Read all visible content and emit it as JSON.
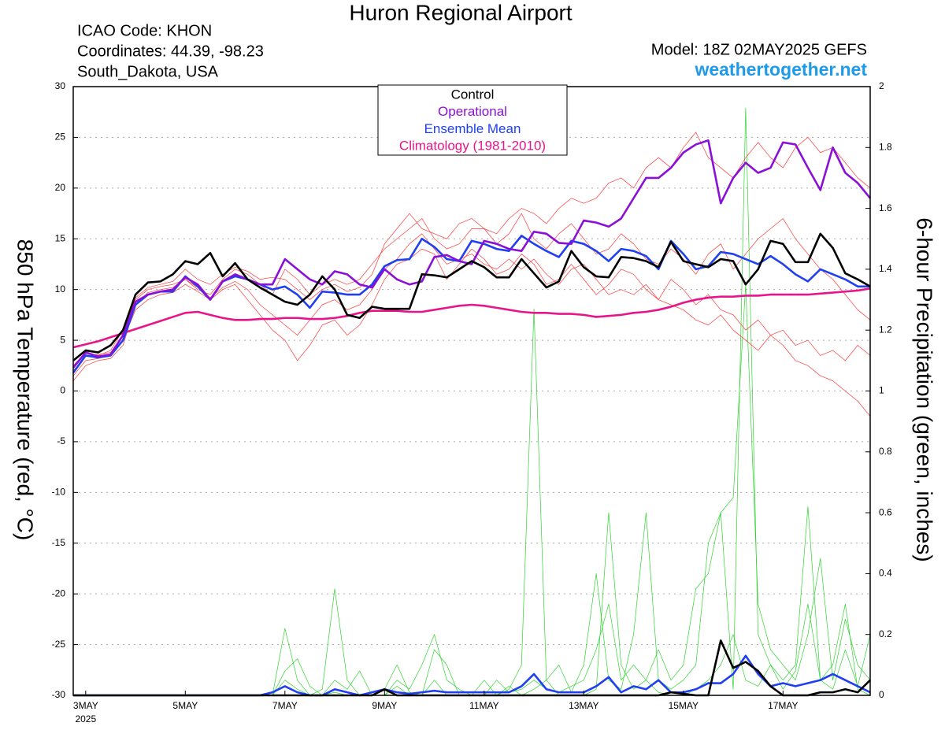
{
  "chart_data": {
    "type": "line",
    "title": "Huron Regional Airport",
    "header_lines": [
      "ICAO Code: KHON",
      "Coordinates: 44.39, -98.23",
      "South_Dakota, USA"
    ],
    "model": "Model: 18Z 02MAY2025 GEFS",
    "source": "weathertogether.net",
    "source_color": "#1e9be8",
    "y_label": "850 hPa Temperature (red, °C)",
    "y2_label": "6-hour Precipitation (green, inches)",
    "x_year_label": "2025",
    "grid": true,
    "x": [
      2.75,
      3,
      3.25,
      3.5,
      3.75,
      4,
      4.25,
      4.5,
      4.75,
      5,
      5.25,
      5.5,
      5.75,
      6,
      6.25,
      6.5,
      6.75,
      7,
      7.25,
      7.5,
      7.75,
      8,
      8.25,
      8.5,
      8.75,
      9,
      9.25,
      9.5,
      9.75,
      10,
      10.25,
      10.5,
      10.75,
      11,
      11.25,
      11.5,
      11.75,
      12,
      12.25,
      12.5,
      12.75,
      13,
      13.25,
      13.5,
      13.75,
      14,
      14.25,
      14.5,
      14.75,
      15,
      15.25,
      15.5,
      15.75,
      16,
      16.25,
      16.5,
      16.75,
      17,
      17.25,
      17.5,
      17.75,
      18,
      18.25,
      18.5,
      18.75
    ],
    "xlim": [
      2.75,
      18.75
    ],
    "xticks": [
      {
        "value": 3,
        "label": "3MAY"
      },
      {
        "value": 5,
        "label": "5MAY"
      },
      {
        "value": 7,
        "label": "7MAY"
      },
      {
        "value": 9,
        "label": "9MAY"
      },
      {
        "value": 11,
        "label": "11MAY"
      },
      {
        "value": 13,
        "label": "13MAY"
      },
      {
        "value": 15,
        "label": "15MAY"
      },
      {
        "value": 17,
        "label": "17MAY"
      }
    ],
    "ylim": [
      -30,
      30
    ],
    "yticks": [
      -30,
      -25,
      -20,
      -15,
      -10,
      -5,
      0,
      5,
      10,
      15,
      20,
      25,
      30
    ],
    "y2lim": [
      0,
      2
    ],
    "y2ticks": [
      0,
      0.2,
      0.4,
      0.6,
      0.8,
      1,
      1.2,
      1.4,
      1.6,
      1.8,
      2
    ],
    "series": [
      {
        "name": "Control",
        "color": "#000000",
        "line_width": 2.6,
        "values": [
          3,
          4,
          3.8,
          4.5,
          6,
          9.5,
          10.7,
          10.8,
          11.5,
          12.8,
          12.5,
          13.6,
          11.3,
          12.6,
          11,
          10.2,
          9.5,
          8.8,
          8.5,
          9.5,
          11.3,
          10,
          7.5,
          7.2,
          8.3,
          8.1,
          8.1,
          8.1,
          11.5,
          11.4,
          11.2,
          12,
          12.8,
          12.2,
          11.2,
          11.2,
          13,
          11.6,
          10.2,
          10.8,
          13.8,
          12.2,
          11.3,
          11.2,
          13.2,
          13.1,
          12.8,
          12.2,
          14.7,
          12.8,
          12.5,
          12.2,
          13,
          12.8,
          10.5,
          12,
          14.8,
          14.5,
          12.7,
          12.7,
          15.5,
          14.1,
          11.6,
          11,
          10.3
        ]
      },
      {
        "name": "Operational",
        "color": "#8a10d8",
        "line_width": 2.6,
        "values": [
          2.3,
          3.8,
          3.4,
          3.6,
          5.5,
          8.8,
          9.5,
          9.8,
          10,
          11.2,
          10.5,
          9,
          10.8,
          11.5,
          11,
          10.5,
          10.5,
          13,
          12,
          11,
          10.5,
          11.8,
          11.5,
          10.5,
          10.2,
          12,
          11,
          10.5,
          10.8,
          13.2,
          13.4,
          12.8,
          12.5,
          14.8,
          14.5,
          14,
          13.8,
          15.7,
          15.5,
          14.6,
          14.5,
          16.8,
          16.6,
          16.2,
          17,
          19,
          21,
          21,
          22,
          23.5,
          24.3,
          24.7,
          18.5,
          21,
          22.5,
          21.5,
          22,
          24.5,
          24.3,
          22,
          19.8,
          24,
          21.5,
          20.5,
          19
        ]
      },
      {
        "name": "Ensemble Mean",
        "color": "#1f3ff0",
        "line_width": 2.6,
        "values": [
          1.8,
          3.5,
          3.3,
          3.5,
          5,
          8.5,
          9.5,
          9.8,
          9.8,
          11.3,
          10.3,
          9,
          10.8,
          11.3,
          11,
          10.5,
          10,
          10.3,
          9.5,
          8.2,
          9.8,
          9.7,
          9.5,
          9.5,
          10.5,
          12.3,
          12.9,
          13,
          15,
          14.2,
          13,
          12.8,
          14.8,
          14.5,
          14,
          13.8,
          15.3,
          14.5,
          13.8,
          13.2,
          14.8,
          14.5,
          13.8,
          12.8,
          14,
          13.8,
          13.3,
          12,
          14.8,
          13.5,
          12,
          12.3,
          13.7,
          13.5,
          13,
          12.5,
          13.3,
          12.5,
          11.5,
          10.8,
          12,
          11.5,
          11,
          10.3,
          10.3
        ]
      },
      {
        "name": "Climatology (1981-2010)",
        "color": "#e8158a",
        "line_width": 2.6,
        "values": [
          4.3,
          4.6,
          4.9,
          5.3,
          5.7,
          6.1,
          6.5,
          6.9,
          7.3,
          7.7,
          7.8,
          7.5,
          7.2,
          7,
          7,
          7.1,
          7.1,
          7.2,
          7.2,
          7.1,
          7.1,
          7.2,
          7.4,
          7.7,
          7.9,
          7.9,
          7.9,
          7.8,
          7.8,
          8,
          8.2,
          8.4,
          8.5,
          8.4,
          8.2,
          8,
          7.8,
          7.7,
          7.7,
          7.6,
          7.6,
          7.5,
          7.3,
          7.4,
          7.5,
          7.7,
          7.8,
          8,
          8.3,
          8.7,
          9,
          9.2,
          9.3,
          9.3,
          9.4,
          9.4,
          9.5,
          9.5,
          9.5,
          9.5,
          9.6,
          9.7,
          9.8,
          9.9,
          10.1
        ]
      },
      {
        "color": "#000000",
        "line_width": 2.6,
        "axis": "y2",
        "values": [
          0,
          0,
          0,
          0,
          0,
          0,
          0,
          0,
          0,
          0,
          0,
          0,
          0,
          0,
          0,
          0,
          0,
          0,
          0,
          0,
          0,
          0,
          0,
          0,
          0,
          0.02,
          0,
          0,
          0,
          0,
          0,
          0,
          0,
          0,
          0,
          0,
          0,
          0,
          0,
          0,
          0,
          0,
          0,
          0,
          0,
          0,
          0,
          0,
          0.01,
          0.005,
          0,
          0,
          0.18,
          0.09,
          0.11,
          0.08,
          0.03,
          0,
          0,
          0,
          0.01,
          0.01,
          0.02,
          0.01,
          0.05
        ]
      },
      {
        "color": "#1f3ff0",
        "line_width": 2.6,
        "axis": "y2",
        "values": [
          0,
          0,
          0,
          0,
          0,
          0,
          0,
          0,
          0,
          0,
          0,
          0,
          0,
          0,
          0,
          0,
          0.01,
          0.03,
          0.01,
          0,
          0,
          0.02,
          0.01,
          0,
          0.01,
          0.02,
          0.01,
          0.005,
          0.01,
          0.015,
          0.01,
          0.01,
          0.01,
          0.01,
          0.01,
          0.01,
          0.03,
          0.07,
          0.02,
          0.01,
          0.01,
          0.01,
          0.03,
          0.06,
          0.01,
          0.03,
          0.02,
          0.05,
          0.01,
          0.01,
          0.02,
          0.04,
          0.04,
          0.07,
          0.13,
          0.07,
          0.03,
          0.04,
          0.03,
          0.04,
          0.05,
          0.07,
          0.05,
          0.03,
          0.01
        ]
      },
      {
        "color": "#ff3a3a",
        "line_width": 0.7,
        "values": [
          2.5,
          3.8,
          3.5,
          4,
          6,
          9,
          10,
          10.3,
          10.5,
          11,
          10,
          9.5,
          11,
          12,
          11.5,
          10.5,
          9.5,
          12,
          11,
          9.5,
          10.5,
          11,
          10.5,
          11,
          12.5,
          14,
          15,
          16,
          17,
          15,
          14,
          14.5,
          16,
          16,
          15.5,
          17,
          18,
          17.5,
          16.5,
          18,
          19,
          18.5,
          19,
          20.5,
          21,
          20,
          22,
          23,
          22,
          24,
          25.5,
          23,
          22,
          21,
          23,
          24.5,
          23,
          22,
          24,
          25,
          23.5,
          24,
          22.5,
          21,
          20
        ]
      },
      {
        "color": "#ff3a3a",
        "line_width": 0.7,
        "values": [
          1.5,
          3,
          3.2,
          3.5,
          5,
          8,
          9,
          9.5,
          9.7,
          10.5,
          9.8,
          9,
          10,
          10.5,
          9,
          7.5,
          6,
          5,
          3,
          4.5,
          6.5,
          7,
          5.5,
          6.5,
          8.5,
          11,
          12.5,
          13,
          14,
          13.5,
          11,
          12.5,
          14,
          13,
          11.5,
          12,
          13.5,
          12.5,
          10.5,
          11,
          12.5,
          11,
          9.5,
          10.5,
          12,
          11.5,
          10,
          9,
          11,
          10,
          8.5,
          9.5,
          8,
          7.5,
          6,
          7,
          5.5,
          6,
          4.5,
          5,
          3.5,
          4,
          3,
          4.5,
          3.5
        ]
      },
      {
        "color": "#ff3a3a",
        "line_width": 0.7,
        "values": [
          2,
          3.4,
          3.6,
          3.8,
          5.5,
          9.2,
          10.2,
          10.5,
          10.8,
          12,
          11,
          10.5,
          11.5,
          12.2,
          11.8,
          11,
          11.2,
          11,
          10,
          9,
          10,
          10.5,
          9.8,
          10.2,
          11.5,
          14.5,
          16,
          17.5,
          16,
          15.5,
          15,
          16.5,
          17,
          16,
          14.5,
          15.5,
          17.5,
          15,
          14,
          15.5,
          16.5,
          15,
          13.5,
          14,
          15.5,
          14.5,
          13,
          12.5,
          14,
          13,
          11.5,
          13.5,
          14.5,
          12,
          13.5,
          15,
          16,
          17,
          15,
          13.5,
          12,
          11,
          9.5,
          8,
          7
        ]
      },
      {
        "color": "#ff3a3a",
        "line_width": 0.7,
        "values": [
          1,
          2.5,
          3,
          3.2,
          4.5,
          8.5,
          9.7,
          10,
          10.2,
          11,
          10.2,
          9.2,
          10.2,
          10.8,
          10,
          8.5,
          7.5,
          6.5,
          5.5,
          7,
          8.5,
          9,
          8,
          8.5,
          10,
          12,
          13,
          14.5,
          15.5,
          14,
          12.5,
          13,
          13.5,
          12.5,
          12,
          13,
          12,
          13,
          11.5,
          10.5,
          12,
          12.5,
          11,
          9.5,
          10,
          9.5,
          10.5,
          9,
          8.5,
          8,
          7,
          6.5,
          7.5,
          6,
          5,
          4,
          5.5,
          4.5,
          3,
          2.5,
          1.5,
          1,
          0,
          -1,
          -2.5
        ]
      },
      {
        "color": "#2ed42e",
        "line_width": 0.7,
        "axis": "y2",
        "values": [
          0,
          0,
          0,
          0,
          0,
          0,
          0,
          0,
          0,
          0,
          0,
          0,
          0,
          0,
          0,
          0,
          0,
          0.05,
          0.02,
          0,
          0,
          0.01,
          0,
          0,
          0,
          0,
          0.03,
          0,
          0,
          0.05,
          0,
          0,
          0,
          0,
          0,
          0.02,
          0.1,
          1.27,
          0.05,
          0,
          0,
          0,
          0.02,
          0.6,
          0.1,
          0.02,
          0.05,
          0.01,
          0,
          0,
          0.02,
          0.05,
          0.1,
          0.2,
          0.05,
          0.03,
          0.1,
          0.02,
          0.08,
          0.3,
          0.05,
          0.02,
          0.15,
          0.03,
          0.2
        ]
      },
      {
        "color": "#2ed42e",
        "line_width": 0.7,
        "axis": "y2",
        "values": [
          0,
          0,
          0,
          0,
          0,
          0,
          0,
          0,
          0,
          0,
          0,
          0,
          0,
          0,
          0,
          0,
          0,
          0.22,
          0.05,
          0,
          0.02,
          0.35,
          0.05,
          0,
          0,
          0.02,
          0.1,
          0.01,
          0,
          0.15,
          0.1,
          0,
          0,
          0.05,
          0,
          0.03,
          0,
          0.02,
          0.05,
          0.1,
          0.01,
          0.1,
          0.4,
          0.05,
          0.02,
          0.2,
          0.6,
          0.05,
          0.02,
          0.05,
          0.1,
          0.5,
          0.6,
          0.02,
          1.93,
          0.2,
          0.1,
          0.05,
          0.1,
          0.62,
          0.05,
          0.1,
          0.3,
          0.02,
          0
        ]
      },
      {
        "color": "#2ed42e",
        "line_width": 0.7,
        "axis": "y2",
        "values": [
          0,
          0,
          0,
          0,
          0,
          0,
          0,
          0,
          0,
          0,
          0,
          0,
          0,
          0,
          0,
          0,
          0,
          0.08,
          0.12,
          0.03,
          0,
          0.05,
          0.02,
          0.08,
          0,
          0,
          0.05,
          0.02,
          0.1,
          0.2,
          0.05,
          0.02,
          0,
          0,
          0.05,
          0.01,
          0.02,
          0.05,
          0.02,
          0.01,
          0.03,
          0.05,
          0.15,
          0.3,
          0.05,
          0.1,
          0.05,
          0.15,
          0.05,
          0.1,
          0.35,
          0.4,
          0.6,
          0.65,
          1.35,
          0.3,
          0.15,
          0.1,
          0.05,
          0.2,
          0.45,
          0.05,
          0.25,
          0.1,
          0.05
        ]
      }
    ]
  }
}
